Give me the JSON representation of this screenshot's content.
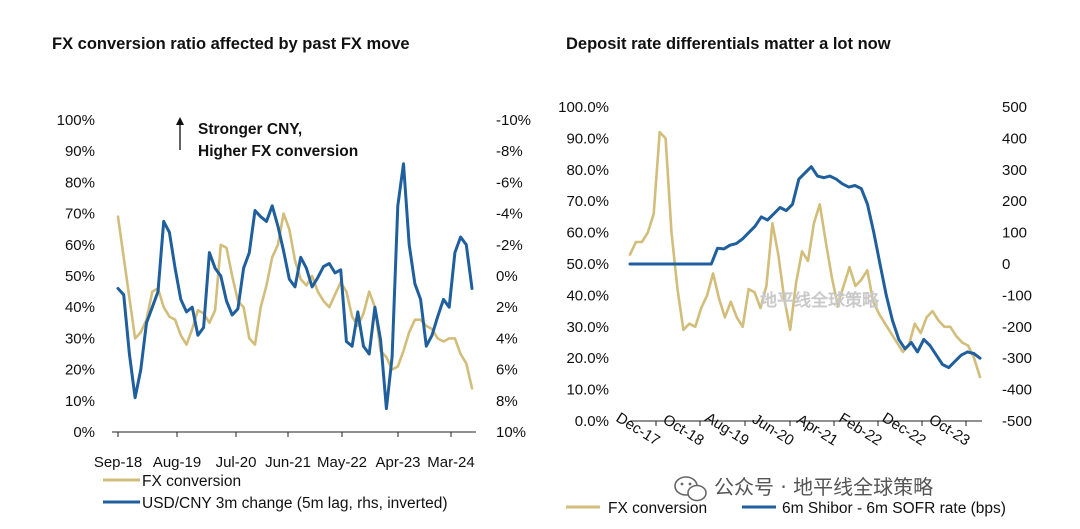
{
  "colors": {
    "fx": "#d2bd7a",
    "blue": "#1f5f9d",
    "axis": "#222222"
  },
  "chart_data": [
    {
      "type": "line",
      "title": "FX conversion ratio affected by past FX move",
      "annotation": [
        "Stronger CNY,",
        "Higher FX conversion"
      ],
      "x_tick_labels": [
        "Sep-18",
        "Aug-19",
        "Jul-20",
        "Jun-21",
        "May-22",
        "Apr-23",
        "Mar-24"
      ],
      "y_left_ticks": [
        "100%",
        "90%",
        "80%",
        "70%",
        "60%",
        "50%",
        "40%",
        "30%",
        "20%",
        "10%",
        "0%"
      ],
      "y_right_ticks": [
        "-10%",
        "-8%",
        "-6%",
        "-4%",
        "-2%",
        "0%",
        "2%",
        "4%",
        "6%",
        "8%",
        "10%"
      ],
      "ylim_left": [
        0,
        100
      ],
      "ylim_right": [
        10,
        -10
      ],
      "series": [
        {
          "name": "FX conversion",
          "axis": "left",
          "values": [
            69,
            56,
            43,
            30,
            32,
            36,
            45,
            46,
            40,
            37,
            36,
            31,
            28,
            33,
            39,
            38,
            35,
            39,
            60,
            59,
            50,
            42,
            40,
            30,
            28,
            40,
            47,
            56,
            60,
            70,
            65,
            55,
            49,
            47,
            50,
            45,
            42,
            40,
            44,
            48,
            45,
            37,
            34,
            38,
            45,
            40,
            26,
            24,
            20,
            21,
            26,
            32,
            36,
            36,
            34,
            33,
            30,
            29,
            30,
            30,
            25,
            22,
            14
          ]
        },
        {
          "name": "USD/CNY 3m change (5m lag, rhs, inverted)",
          "axis": "right",
          "values": [
            0.8,
            1.2,
            5,
            7.8,
            6,
            3,
            2,
            1,
            -3.5,
            -2.8,
            -0.5,
            1.5,
            2.3,
            2,
            3.8,
            3.3,
            -1.5,
            -0.5,
            0,
            1.6,
            2.5,
            2.1,
            -0.5,
            -1.5,
            -4.2,
            -3.8,
            -3.5,
            -4.5,
            -3.2,
            -1.6,
            0.2,
            0.7,
            -1.2,
            -0.5,
            0.7,
            0.1,
            -0.6,
            -0.8,
            -0.2,
            -0.4,
            4.2,
            4.5,
            2.3,
            4.5,
            5,
            2,
            4.1,
            8.5,
            5.2,
            -4.5,
            -7.2,
            -2,
            0.5,
            1.5,
            4.5,
            3.8,
            2.6,
            1.5,
            2,
            -1.5,
            -2.5,
            -2,
            0.8
          ]
        }
      ]
    },
    {
      "type": "line",
      "title": "Deposit rate differentials matter a lot now",
      "x_tick_labels": [
        "Dec-17",
        "Oct-18",
        "Aug-19",
        "Jun-20",
        "Apr-21",
        "Feb-22",
        "Dec-22",
        "Oct-23"
      ],
      "y_left_ticks": [
        "100.0%",
        "90.0%",
        "80.0%",
        "70.0%",
        "60.0%",
        "50.0%",
        "40.0%",
        "30.0%",
        "20.0%",
        "10.0%",
        "0.0%"
      ],
      "y_right_ticks": [
        "500",
        "400",
        "300",
        "200",
        "100",
        "0",
        "-100",
        "-200",
        "-300",
        "-400",
        "-500"
      ],
      "ylim_left": [
        0,
        100
      ],
      "ylim_right": [
        -500,
        500
      ],
      "series": [
        {
          "name": "FX conversion",
          "axis": "left",
          "values": [
            53,
            57,
            57,
            60,
            66,
            92,
            90,
            60,
            42,
            29,
            31,
            30,
            36,
            40,
            47,
            39,
            33,
            38,
            33,
            30,
            42,
            41,
            36,
            43,
            63,
            53,
            39,
            29,
            44,
            54,
            51,
            63,
            69,
            57,
            46,
            37,
            43,
            49,
            43,
            45,
            48,
            38,
            34,
            31,
            28,
            25,
            22,
            24,
            31,
            28,
            33,
            35,
            32,
            30,
            30,
            27,
            25,
            24,
            20,
            14
          ]
        },
        {
          "name": "6m Shibor - 6m SOFR rate (bps)",
          "axis": "right",
          "values": [
            0,
            0,
            0,
            0,
            0,
            0,
            0,
            0,
            0,
            0,
            0,
            0,
            0,
            0,
            50,
            48,
            60,
            65,
            80,
            100,
            120,
            150,
            140,
            160,
            180,
            170,
            190,
            270,
            290,
            310,
            280,
            275,
            280,
            270,
            255,
            245,
            250,
            240,
            190,
            100,
            0,
            -100,
            -180,
            -240,
            -270,
            -250,
            -280,
            -240,
            -260,
            -290,
            -320,
            -330,
            -310,
            -290,
            -280,
            -285,
            -300
          ]
        }
      ]
    }
  ],
  "watermark": "地平线全球策略",
  "footer_text": "公众号 · 地平线全球策略"
}
